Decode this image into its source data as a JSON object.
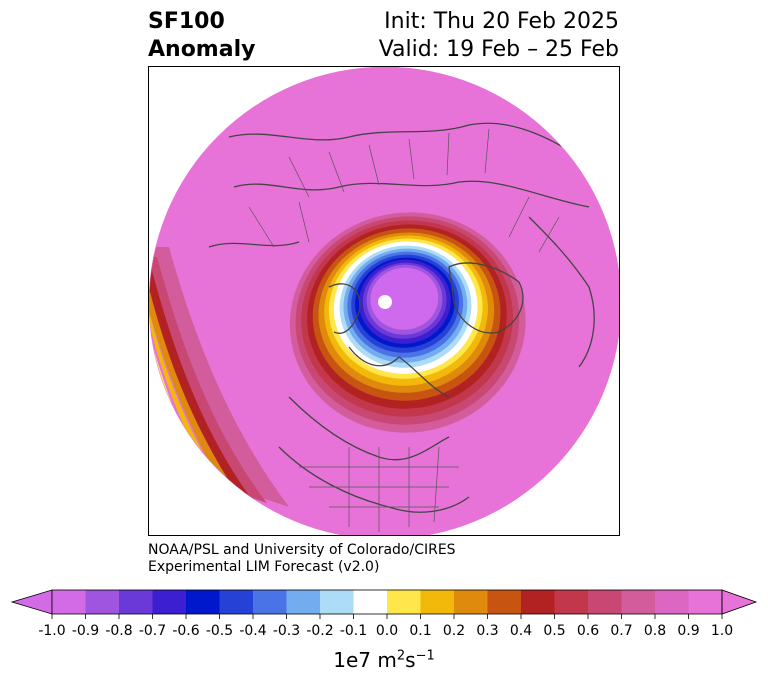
{
  "title": {
    "variable": "SF100",
    "kind": "Anomaly"
  },
  "header": {
    "init": "Init: Thu 20 Feb 2025",
    "valid": "Valid: 19 Feb – 25 Feb"
  },
  "credit": {
    "line1": "NOAA/PSL and University of Colorado/CIRES",
    "line2": "Experimental LIM Forecast (v2.0)"
  },
  "colorbar": {
    "ticks": [
      "-1.0",
      "-0.9",
      "-0.8",
      "-0.7",
      "-0.6",
      "-0.5",
      "-0.4",
      "-0.3",
      "-0.2",
      "-0.1",
      "0.0",
      "0.1",
      "0.2",
      "0.3",
      "0.4",
      "0.5",
      "0.6",
      "0.7",
      "0.8",
      "0.9",
      "1.0"
    ],
    "colors": [
      "#d46be6",
      "#9f55e0",
      "#6b39d8",
      "#3b1fd0",
      "#0018cc",
      "#2642d6",
      "#4a74e6",
      "#74acf0",
      "#acdcf8",
      "#ffffff",
      "#ffffff",
      "#ffe64a",
      "#f3b90a",
      "#df8a0c",
      "#c85412",
      "#b32222",
      "#c2374c",
      "#c94873",
      "#d25c9c",
      "#dc67c2",
      "#e873d8"
    ],
    "under_color": "#d46be6",
    "over_color": "#e873d8",
    "unit_base": "1e7 m",
    "unit_exp1": "2",
    "unit_mid": "s",
    "unit_exp2": "−1"
  },
  "map": {
    "projection": "north-polar-stereographic",
    "background_anomaly_color": "#e873d8",
    "negative_core_color": "#cf6aef"
  }
}
